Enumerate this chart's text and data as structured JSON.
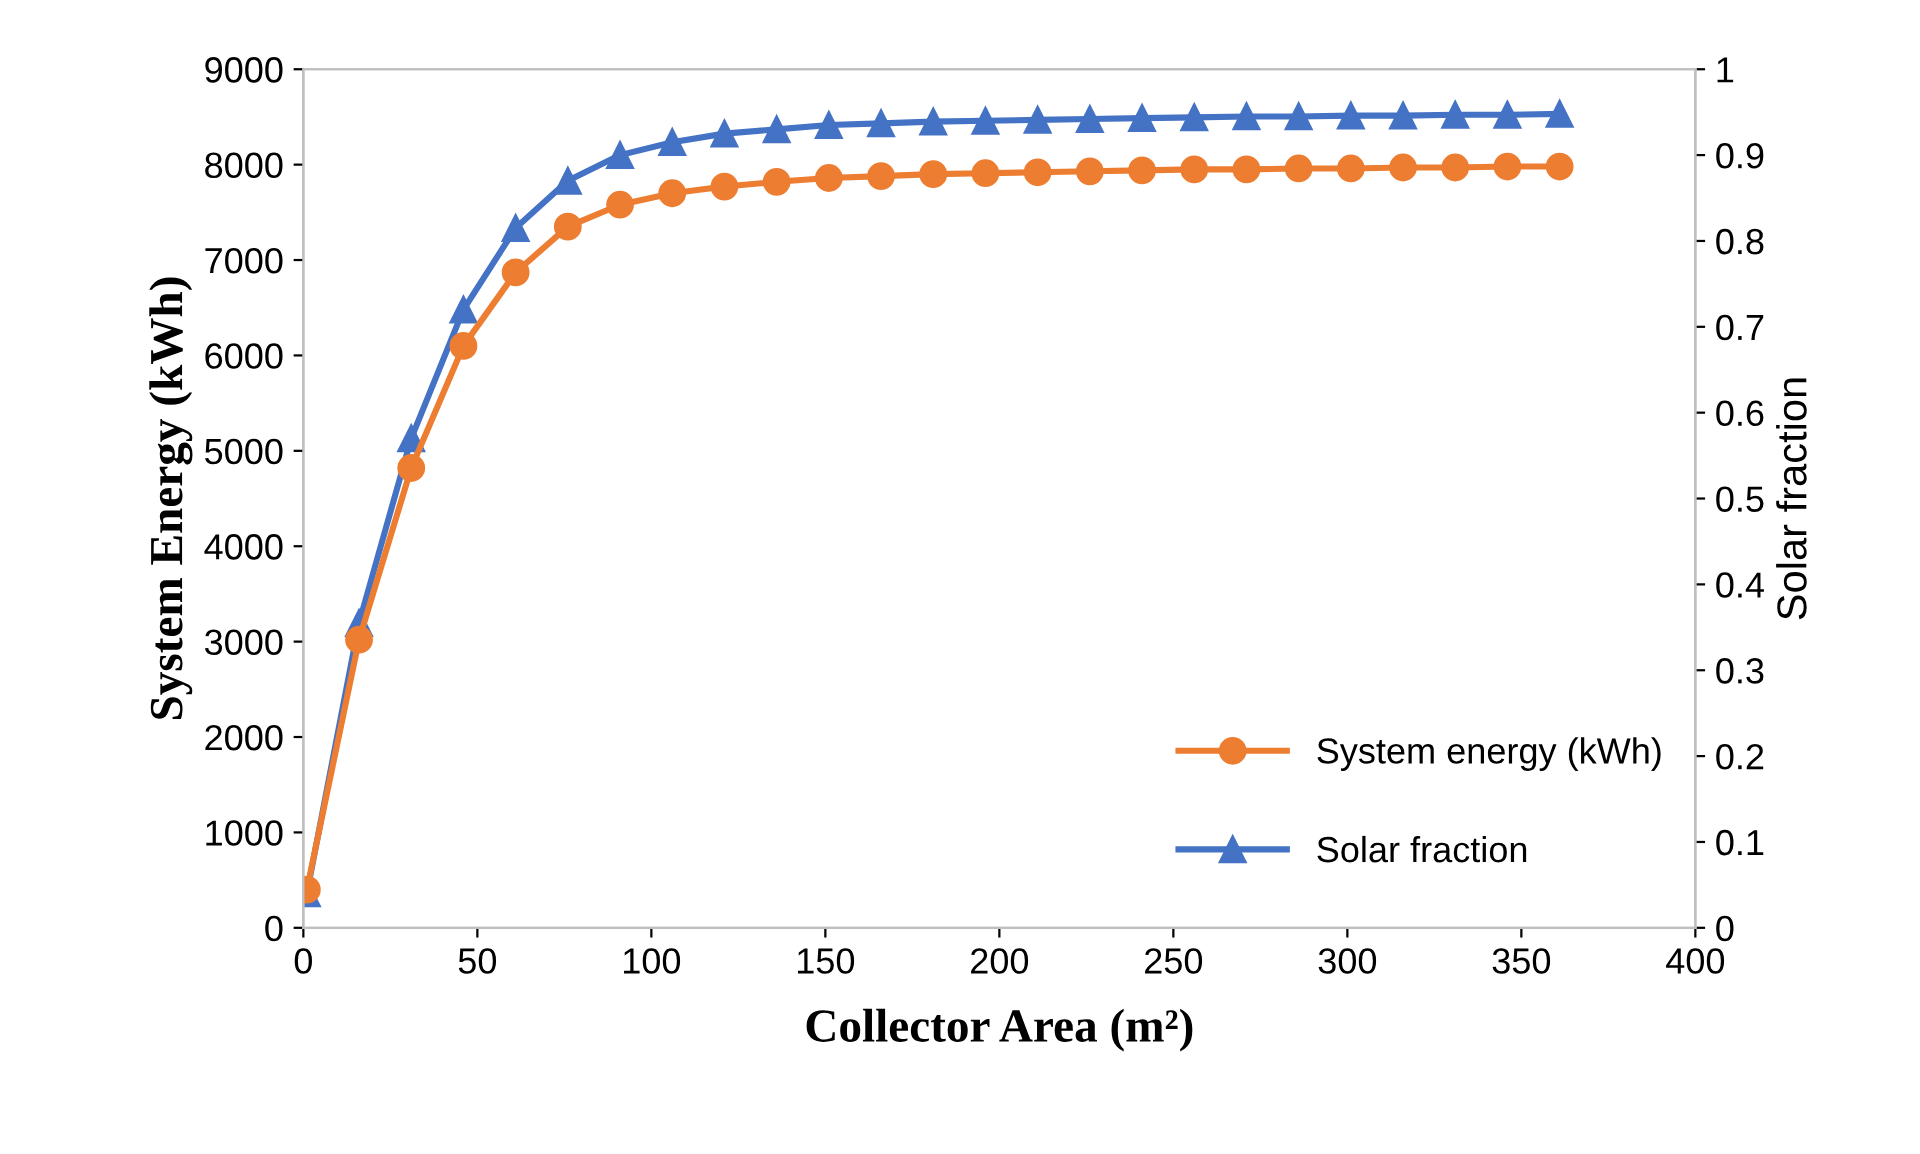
{
  "chart_data": {
    "type": "line",
    "xlabel": "Collector Area (m²)",
    "ylabel": "System Energy (kWh)",
    "y2label": "Solar fraction",
    "x": [
      1,
      16,
      31,
      46,
      61,
      76,
      91,
      106,
      121,
      136,
      151,
      166,
      181,
      196,
      211,
      226,
      241,
      256,
      271,
      286,
      301,
      316,
      331,
      346,
      361
    ],
    "series": [
      {
        "name": "System energy (kWh)",
        "color": "#ed7d31",
        "marker": "circle",
        "values": [
          400,
          3020,
          4820,
          6100,
          6870,
          7350,
          7580,
          7700,
          7770,
          7820,
          7860,
          7880,
          7900,
          7910,
          7920,
          7930,
          7940,
          7950,
          7950,
          7960,
          7960,
          7970,
          7970,
          7980,
          7980
        ]
      },
      {
        "name": "Solar fraction",
        "color": "#4472c4",
        "marker": "triangle",
        "axis": "y2",
        "values": [
          0.04,
          0.355,
          0.57,
          0.72,
          0.815,
          0.87,
          0.9,
          0.915,
          0.925,
          0.93,
          0.935,
          0.937,
          0.939,
          0.94,
          0.941,
          0.942,
          0.943,
          0.944,
          0.945,
          0.945,
          0.946,
          0.946,
          0.947,
          0.947,
          0.948
        ]
      }
    ],
    "xlim": [
      0,
      400
    ],
    "xticks": [
      0,
      50,
      100,
      150,
      200,
      250,
      300,
      350,
      400
    ],
    "ylim": [
      0,
      9000
    ],
    "yticks": [
      0,
      1000,
      2000,
      3000,
      4000,
      5000,
      6000,
      7000,
      8000,
      9000
    ],
    "y2lim": [
      0,
      1
    ],
    "y2ticks": [
      0,
      0.1,
      0.2,
      0.3,
      0.4,
      0.5,
      0.6,
      0.7,
      0.8,
      0.9,
      1
    ],
    "legend": "bottom right",
    "grid": false,
    "line_style": "solid"
  }
}
